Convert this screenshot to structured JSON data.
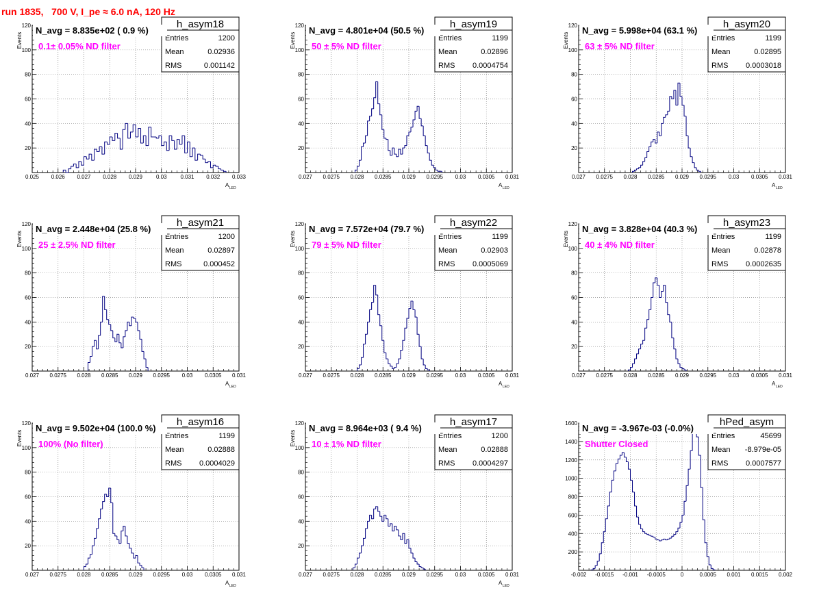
{
  "title": "run 1835,   700 V, I_pe ≈ 6.0 nA, 120 Hz",
  "colors": {
    "title": "#ff0000",
    "filter_text": "#ff00ff",
    "histogram": "#000080",
    "grid": "#888888"
  },
  "chart_data": [
    {
      "type": "histogram",
      "name": "h_asym18",
      "navg": "N_avg = 8.835e+02 ( 0.9 %)",
      "filter": "0.1± 0.05% ND filter",
      "stats": [
        [
          "Entries",
          "1200"
        ],
        [
          "Mean",
          "0.02936"
        ],
        [
          "RMS",
          "0.001142"
        ]
      ],
      "xlim": [
        0.025,
        0.033
      ],
      "ylim": [
        0,
        120
      ],
      "xticks": [
        [
          0.025,
          "0.025"
        ],
        [
          0.026,
          "0.026"
        ],
        [
          0.027,
          "0.027"
        ],
        [
          0.028,
          "0.028"
        ],
        [
          0.029,
          "0.029"
        ],
        [
          0.03,
          "0.03"
        ],
        [
          0.031,
          "0.031"
        ],
        [
          0.032,
          "0.032"
        ],
        [
          0.033,
          "0.033"
        ]
      ],
      "yticks": [
        [
          0,
          ""
        ],
        [
          20,
          "20"
        ],
        [
          40,
          "40"
        ],
        [
          60,
          "60"
        ],
        [
          80,
          "80"
        ],
        [
          100,
          "100"
        ],
        [
          120,
          "120"
        ]
      ],
      "xlabel": "A",
      "xlabel_sub": "LED",
      "ylabel": "Events",
      "start": 0.0262,
      "width": 0.0001,
      "values": [
        2,
        0,
        3,
        5,
        7,
        4,
        9,
        6,
        13,
        11,
        15,
        10,
        19,
        17,
        21,
        15,
        25,
        23,
        29,
        26,
        32,
        28,
        19,
        35,
        40,
        28,
        33,
        39,
        29,
        36,
        24,
        30,
        22,
        37,
        29,
        29,
        28,
        30,
        22,
        25,
        18,
        30,
        26,
        19,
        27,
        23,
        30,
        16,
        25,
        13,
        20,
        10,
        15,
        14,
        11,
        8,
        9,
        4,
        6,
        5,
        3,
        2,
        1
      ]
    },
    {
      "type": "histogram",
      "name": "h_asym19",
      "navg": "N_avg = 4.801e+04 (50.5 %)",
      "filter": "50 ± 5% ND filter",
      "stats": [
        [
          "Entries",
          "1199"
        ],
        [
          "Mean",
          "0.02896"
        ],
        [
          "RMS",
          "0.0004754"
        ]
      ],
      "xlim": [
        0.027,
        0.031
      ],
      "ylim": [
        0,
        120
      ],
      "xticks": [
        [
          0.027,
          "0.027"
        ],
        [
          0.0275,
          "0.0275"
        ],
        [
          0.028,
          "0.028"
        ],
        [
          0.0285,
          "0.0285"
        ],
        [
          0.029,
          "0.029"
        ],
        [
          0.0295,
          "0.0295"
        ],
        [
          0.03,
          "0.03"
        ],
        [
          0.0305,
          "0.0305"
        ],
        [
          0.031,
          "0.031"
        ]
      ],
      "yticks": [
        [
          0,
          ""
        ],
        [
          20,
          "20"
        ],
        [
          40,
          "40"
        ],
        [
          60,
          "60"
        ],
        [
          80,
          "80"
        ],
        [
          100,
          "100"
        ],
        [
          120,
          "120"
        ]
      ],
      "xlabel": "A",
      "xlabel_sub": "LED",
      "ylabel": "Events",
      "start": 0.02796,
      "width": 4e-05,
      "values": [
        2,
        5,
        10,
        21,
        24,
        30,
        42,
        46,
        52,
        61,
        74,
        56,
        47,
        35,
        28,
        27,
        18,
        14,
        20,
        15,
        13,
        19,
        15,
        20,
        22,
        30,
        33,
        37,
        43,
        50,
        54,
        44,
        38,
        30,
        22,
        16,
        10,
        6,
        4,
        2,
        1,
        1
      ]
    },
    {
      "type": "histogram",
      "name": "h_asym20",
      "navg": "N_avg = 5.998e+04 (63.1 %)",
      "filter": "63 ± 5% ND filter",
      "stats": [
        [
          "Entries",
          "1199"
        ],
        [
          "Mean",
          "0.02895"
        ],
        [
          "RMS",
          "0.0003018"
        ]
      ],
      "xlim": [
        0.027,
        0.031
      ],
      "ylim": [
        0,
        120
      ],
      "xticks": [
        [
          0.027,
          "0.027"
        ],
        [
          0.0275,
          "0.0275"
        ],
        [
          0.028,
          "0.028"
        ],
        [
          0.0285,
          "0.0285"
        ],
        [
          0.029,
          "0.029"
        ],
        [
          0.0295,
          "0.0295"
        ],
        [
          0.03,
          "0.03"
        ],
        [
          0.0305,
          "0.0305"
        ],
        [
          0.031,
          "0.031"
        ]
      ],
      "yticks": [
        [
          0,
          ""
        ],
        [
          20,
          "20"
        ],
        [
          40,
          "40"
        ],
        [
          60,
          "60"
        ],
        [
          80,
          "80"
        ],
        [
          100,
          "100"
        ],
        [
          120,
          "120"
        ]
      ],
      "xlabel": "A",
      "xlabel_sub": "LED",
      "ylabel": "Events",
      "start": 0.02804,
      "width": 4e-05,
      "values": [
        1,
        2,
        3,
        4,
        6,
        9,
        12,
        17,
        21,
        25,
        27,
        24,
        33,
        30,
        40,
        45,
        47,
        50,
        62,
        60,
        67,
        55,
        73,
        62,
        55,
        46,
        30,
        20,
        13,
        8,
        4,
        2,
        1
      ]
    },
    {
      "type": "histogram",
      "name": "h_asym21",
      "navg": "N_avg = 2.448e+04 (25.8 %)",
      "filter": "25 ± 2.5% ND filter",
      "stats": [
        [
          "Entries",
          "1200"
        ],
        [
          "Mean",
          "0.02897"
        ],
        [
          "RMS",
          "0.000452"
        ]
      ],
      "xlim": [
        0.027,
        0.031
      ],
      "ylim": [
        0,
        120
      ],
      "xticks": [
        [
          0.027,
          "0.027"
        ],
        [
          0.0275,
          "0.0275"
        ],
        [
          0.028,
          "0.028"
        ],
        [
          0.0285,
          "0.0285"
        ],
        [
          0.029,
          "0.029"
        ],
        [
          0.0295,
          "0.0295"
        ],
        [
          0.03,
          "0.03"
        ],
        [
          0.0305,
          "0.0305"
        ],
        [
          0.031,
          "0.031"
        ]
      ],
      "yticks": [
        [
          0,
          ""
        ],
        [
          20,
          "20"
        ],
        [
          40,
          "40"
        ],
        [
          60,
          "60"
        ],
        [
          80,
          "80"
        ],
        [
          100,
          "100"
        ],
        [
          120,
          "120"
        ]
      ],
      "xlabel": "A",
      "xlabel_sub": "LED",
      "ylabel": "Events",
      "start": 0.02808,
      "width": 4e-05,
      "values": [
        7,
        12,
        20,
        25,
        18,
        29,
        40,
        61,
        50,
        42,
        38,
        33,
        27,
        24,
        30,
        23,
        19,
        28,
        33,
        40,
        37,
        44,
        43,
        40,
        33,
        26,
        16,
        10,
        3
      ]
    },
    {
      "type": "histogram",
      "name": "h_asym22",
      "navg": "N_avg = 7.572e+04 (79.7 %)",
      "filter": "79 ± 5% ND filter",
      "stats": [
        [
          "Entries",
          "1199"
        ],
        [
          "Mean",
          "0.02903"
        ],
        [
          "RMS",
          "0.0005069"
        ]
      ],
      "xlim": [
        0.027,
        0.031
      ],
      "ylim": [
        0,
        120
      ],
      "xticks": [
        [
          0.027,
          "0.027"
        ],
        [
          0.0275,
          "0.0275"
        ],
        [
          0.028,
          "0.028"
        ],
        [
          0.0285,
          "0.0285"
        ],
        [
          0.029,
          "0.029"
        ],
        [
          0.0295,
          "0.0295"
        ],
        [
          0.03,
          "0.03"
        ],
        [
          0.0305,
          "0.0305"
        ],
        [
          0.031,
          "0.031"
        ]
      ],
      "yticks": [
        [
          0,
          ""
        ],
        [
          20,
          "20"
        ],
        [
          40,
          "40"
        ],
        [
          60,
          "60"
        ],
        [
          80,
          "80"
        ],
        [
          100,
          "100"
        ],
        [
          120,
          "120"
        ]
      ],
      "xlabel": "A",
      "xlabel_sub": "LED",
      "ylabel": "Events",
      "start": 0.028,
      "width": 4e-05,
      "values": [
        2,
        5,
        11,
        22,
        30,
        40,
        50,
        56,
        70,
        62,
        46,
        37,
        25,
        15,
        10,
        6,
        4,
        2,
        3,
        6,
        10,
        17,
        25,
        35,
        43,
        51,
        57,
        50,
        44,
        30,
        20,
        10,
        5,
        2,
        1
      ]
    },
    {
      "type": "histogram",
      "name": "h_asym23",
      "navg": "N_avg = 3.828e+04 (40.3 %)",
      "filter": "40 ± 4% ND filter",
      "stats": [
        [
          "Entries",
          "1199"
        ],
        [
          "Mean",
          "0.02878"
        ],
        [
          "RMS",
          "0.0002635"
        ]
      ],
      "xlim": [
        0.027,
        0.031
      ],
      "ylim": [
        0,
        120
      ],
      "xticks": [
        [
          0.027,
          "0.027"
        ],
        [
          0.0275,
          "0.0275"
        ],
        [
          0.028,
          "0.028"
        ],
        [
          0.0285,
          "0.0285"
        ],
        [
          0.029,
          "0.029"
        ],
        [
          0.0295,
          "0.0295"
        ],
        [
          0.03,
          "0.03"
        ],
        [
          0.0305,
          "0.0305"
        ],
        [
          0.031,
          "0.031"
        ]
      ],
      "yticks": [
        [
          0,
          ""
        ],
        [
          20,
          "20"
        ],
        [
          40,
          "40"
        ],
        [
          60,
          "60"
        ],
        [
          80,
          "80"
        ],
        [
          100,
          "100"
        ],
        [
          120,
          "120"
        ]
      ],
      "xlabel": "A",
      "xlabel_sub": "LED",
      "ylabel": "Events",
      "start": 0.02796,
      "width": 4e-05,
      "values": [
        1,
        3,
        6,
        10,
        14,
        18,
        22,
        25,
        35,
        42,
        50,
        60,
        72,
        76,
        70,
        60,
        65,
        70,
        56,
        46,
        40,
        27,
        18,
        10,
        6,
        3,
        2,
        1
      ]
    },
    {
      "type": "histogram",
      "name": "h_asym16",
      "navg": "N_avg = 9.502e+04 (100.0 %)",
      "filter": "100% (No filter)",
      "stats": [
        [
          "Entries",
          "1199"
        ],
        [
          "Mean",
          "0.02888"
        ],
        [
          "RMS",
          "0.0004029"
        ]
      ],
      "xlim": [
        0.027,
        0.031
      ],
      "ylim": [
        0,
        120
      ],
      "xticks": [
        [
          0.027,
          "0.027"
        ],
        [
          0.0275,
          "0.0275"
        ],
        [
          0.028,
          "0.028"
        ],
        [
          0.0285,
          "0.0285"
        ],
        [
          0.029,
          "0.029"
        ],
        [
          0.0295,
          "0.0295"
        ],
        [
          0.03,
          "0.03"
        ],
        [
          0.0305,
          "0.0305"
        ],
        [
          0.031,
          "0.031"
        ]
      ],
      "yticks": [
        [
          0,
          ""
        ],
        [
          20,
          "20"
        ],
        [
          40,
          "40"
        ],
        [
          60,
          "60"
        ],
        [
          80,
          "80"
        ],
        [
          100,
          "100"
        ],
        [
          120,
          "120"
        ]
      ],
      "xlabel": "A",
      "xlabel_sub": "LED",
      "ylabel": "Events",
      "start": 0.028,
      "width": 4e-05,
      "values": [
        3,
        5,
        10,
        13,
        20,
        26,
        34,
        42,
        50,
        56,
        62,
        60,
        67,
        55,
        30,
        28,
        25,
        22,
        32,
        36,
        28,
        22,
        18,
        14,
        10,
        12,
        6,
        4,
        2
      ]
    },
    {
      "type": "histogram",
      "name": "h_asym17",
      "navg": "N_avg = 8.964e+03 ( 9.4 %)",
      "filter": "10 ± 1% ND filter",
      "stats": [
        [
          "Entries",
          "1200"
        ],
        [
          "Mean",
          "0.02888"
        ],
        [
          "RMS",
          "0.0004297"
        ]
      ],
      "xlim": [
        0.027,
        0.031
      ],
      "ylim": [
        0,
        120
      ],
      "xticks": [
        [
          0.027,
          "0.027"
        ],
        [
          0.0275,
          "0.0275"
        ],
        [
          0.028,
          "0.028"
        ],
        [
          0.0285,
          "0.0285"
        ],
        [
          0.029,
          "0.029"
        ],
        [
          0.0295,
          "0.0295"
        ],
        [
          0.03,
          "0.03"
        ],
        [
          0.0305,
          "0.0305"
        ],
        [
          0.031,
          "0.031"
        ]
      ],
      "yticks": [
        [
          0,
          ""
        ],
        [
          20,
          "20"
        ],
        [
          40,
          "40"
        ],
        [
          60,
          "60"
        ],
        [
          80,
          "80"
        ],
        [
          100,
          "100"
        ],
        [
          120,
          "120"
        ]
      ],
      "xlabel": "A",
      "xlabel_sub": "LED",
      "ylabel": "Events",
      "start": 0.02792,
      "width": 4e-05,
      "values": [
        2,
        5,
        10,
        14,
        20,
        26,
        34,
        40,
        45,
        42,
        50,
        52,
        48,
        44,
        40,
        45,
        42,
        36,
        38,
        32,
        36,
        33,
        28,
        25,
        30,
        22,
        25,
        18,
        14,
        10,
        7,
        5,
        3,
        2,
        1
      ]
    },
    {
      "type": "histogram",
      "name": "hPed_asym",
      "navg": "N_avg = -3.967e-03 (-0.0%)",
      "filter": "Shutter Closed",
      "stats": [
        [
          "Entries",
          "45699"
        ],
        [
          "Mean",
          "-8.979e-05"
        ],
        [
          "RMS",
          "0.0007577"
        ]
      ],
      "xlim": [
        -0.002,
        0.002
      ],
      "ylim": [
        0,
        1600
      ],
      "xticks": [
        [
          -0.002,
          "-0.002"
        ],
        [
          -0.0015,
          "-0.0015"
        ],
        [
          -0.001,
          "-0.001"
        ],
        [
          -0.0005,
          "-0.0005"
        ],
        [
          0,
          "0"
        ],
        [
          0.0005,
          "0.0005"
        ],
        [
          0.001,
          "0.001"
        ],
        [
          0.0015,
          "0.0015"
        ],
        [
          0.002,
          "0.002"
        ]
      ],
      "yticks": [
        [
          0,
          ""
        ],
        [
          200,
          "200"
        ],
        [
          400,
          "400"
        ],
        [
          600,
          "600"
        ],
        [
          800,
          "800"
        ],
        [
          1000,
          "1000"
        ],
        [
          1200,
          "1200"
        ],
        [
          1400,
          "1400"
        ],
        [
          1600,
          "1600"
        ]
      ],
      "xlabel": "",
      "xlabel_sub": "",
      "ylabel": "",
      "start": -0.00176,
      "width": 4e-05,
      "values": [
        5,
        20,
        50,
        100,
        180,
        300,
        420,
        560,
        700,
        850,
        980,
        1080,
        1160,
        1210,
        1250,
        1280,
        1230,
        1180,
        1100,
        980,
        850,
        700,
        580,
        500,
        450,
        420,
        400,
        390,
        380,
        370,
        360,
        340,
        330,
        320,
        330,
        340,
        330,
        340,
        350,
        370,
        390,
        420,
        460,
        520,
        600,
        750,
        920,
        1100,
        1300,
        1500,
        1550,
        1450,
        1250,
        900,
        550,
        300,
        150,
        60,
        20,
        5
      ]
    }
  ]
}
